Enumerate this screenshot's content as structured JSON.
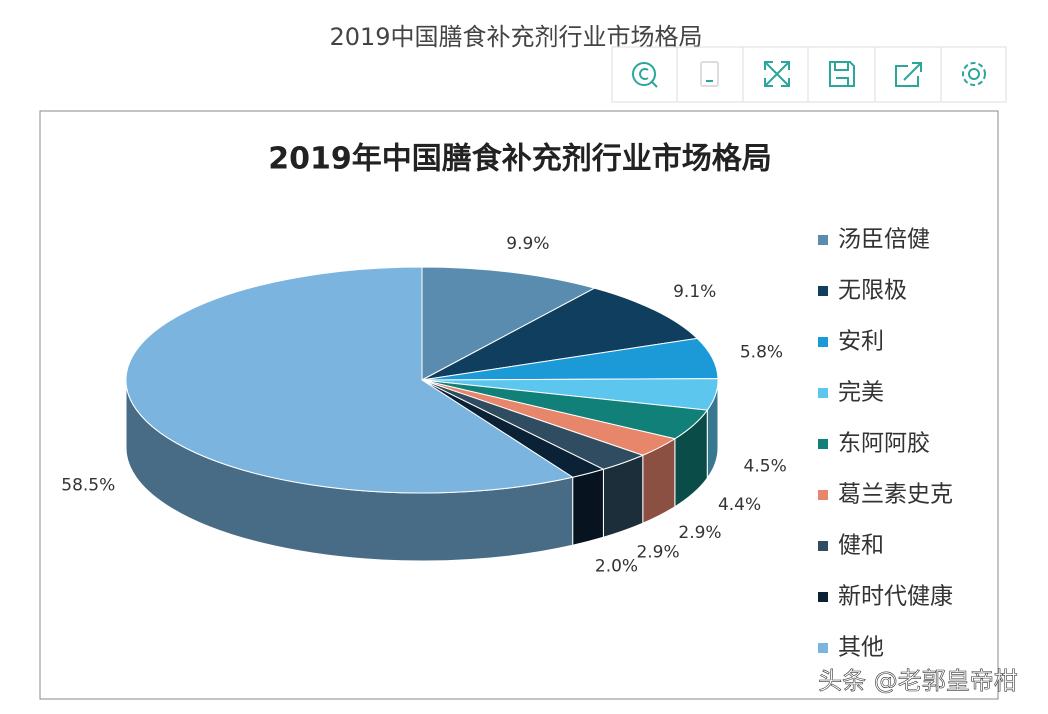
{
  "page_title": "2019中国膳食补充剂行业市场格局",
  "watermark": "头条 @老郭皇帝柑",
  "chart_data": {
    "type": "pie",
    "title": "2019年中国膳食补充剂行业市场格局",
    "categories": [
      "汤臣倍健",
      "无限极",
      "安利",
      "完美",
      "东阿阿胶",
      "葛兰素史克",
      "健和",
      "新时代健康",
      "其他"
    ],
    "values": [
      9.9,
      9.1,
      5.8,
      4.5,
      4.4,
      2.9,
      2.9,
      2.0,
      58.5
    ],
    "value_labels": [
      "9.9%",
      "9.1%",
      "5.8%",
      "4.5%",
      "4.4%",
      "2.9%",
      "2.9%",
      "2.0%",
      "58.5%"
    ],
    "colors": [
      "#5a8cb0",
      "#0f3e5f",
      "#1c9ad8",
      "#5cc6ef",
      "#108078",
      "#e8866c",
      "#2f4c60",
      "#0b2236",
      "#7ab4df"
    ],
    "legend": "right"
  }
}
